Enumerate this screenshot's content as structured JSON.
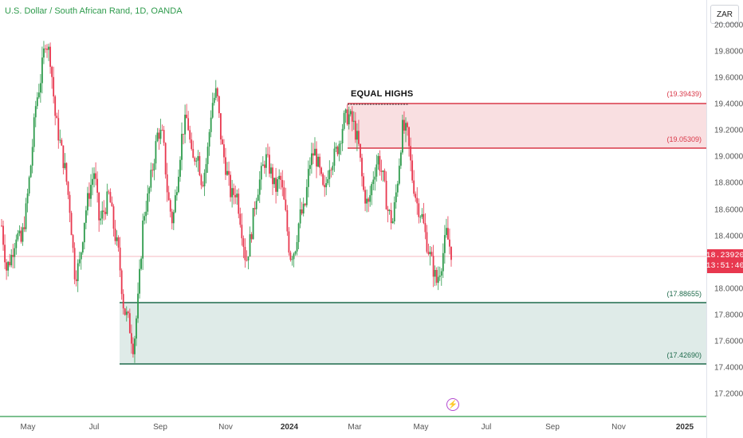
{
  "header": {
    "title": "U.S. Dollar / South African Rand, 1D, OANDA",
    "currency_button": "ZAR"
  },
  "annotations": {
    "equal_highs": "EQUAL HIGHS"
  },
  "colors": {
    "up": "#2e9b4c",
    "down": "#e8384f",
    "supply_fill": "#f8d7da",
    "supply_line": "#d93848",
    "demand_fill": "#dce9e6",
    "demand_line": "#1f6b4c",
    "last_price": "#e8384f",
    "event_icon": "#b44bd0"
  },
  "icons": {
    "event": "lightning-icon"
  },
  "last_price": {
    "value": "18.23920",
    "countdown": "13:51:40"
  },
  "chart_data": {
    "type": "candlestick",
    "title": "U.S. Dollar / South African Rand, 1D, OANDA",
    "symbol": "USDZAR",
    "interval": "1D",
    "source": "OANDA",
    "ylim": [
      17.1,
      20.04
    ],
    "y_ticks": [
      "17.20000",
      "17.40000",
      "17.60000",
      "17.80000",
      "18.00000",
      "18.20000",
      "18.40000",
      "18.60000",
      "18.80000",
      "19.00000",
      "19.20000",
      "19.40000",
      "19.60000",
      "19.80000",
      "20.00000"
    ],
    "x_ticks": [
      "May",
      "Jul",
      "Sep",
      "Nov",
      "2024",
      "Mar",
      "May",
      "Jul",
      "Sep",
      "Nov",
      "2025"
    ],
    "x_ticks_bold": [
      "2024",
      "2025"
    ],
    "last_price": 18.2392,
    "zones": [
      {
        "name": "supply",
        "top": 19.39439,
        "bottom": 19.05309,
        "top_label": "(19.39439)",
        "bottom_label": "(19.05309)"
      },
      {
        "name": "demand",
        "top": 17.88655,
        "bottom": 17.4269,
        "top_label": "(17.88655)",
        "bottom_label": "(17.42690)"
      }
    ],
    "price_path": [
      18.48,
      18.15,
      18.25,
      18.42,
      18.35,
      18.6,
      18.95,
      19.4,
      19.6,
      19.9,
      19.75,
      19.3,
      19.1,
      18.9,
      18.6,
      18.1,
      18.2,
      18.55,
      18.75,
      18.9,
      18.5,
      18.6,
      18.72,
      18.45,
      18.25,
      17.85,
      17.75,
      17.55,
      17.95,
      18.55,
      18.7,
      18.95,
      19.2,
      19.15,
      18.7,
      18.5,
      18.85,
      19.2,
      19.3,
      18.95,
      19.05,
      18.8,
      18.98,
      19.4,
      19.5,
      19.1,
      18.9,
      18.7,
      18.75,
      18.5,
      18.2,
      18.4,
      18.7,
      18.85,
      19.0,
      18.9,
      18.75,
      18.85,
      18.6,
      18.25,
      18.3,
      18.55,
      18.6,
      18.95,
      19.05,
      18.9,
      18.7,
      18.95,
      19.0,
      19.1,
      19.28,
      19.32,
      19.25,
      19.1,
      18.75,
      18.62,
      18.85,
      19.0,
      18.85,
      18.6,
      18.5,
      18.82,
      19.22,
      19.18,
      18.85,
      18.65,
      18.55,
      18.35,
      18.2,
      18.05,
      18.2,
      18.42,
      18.28
    ]
  }
}
